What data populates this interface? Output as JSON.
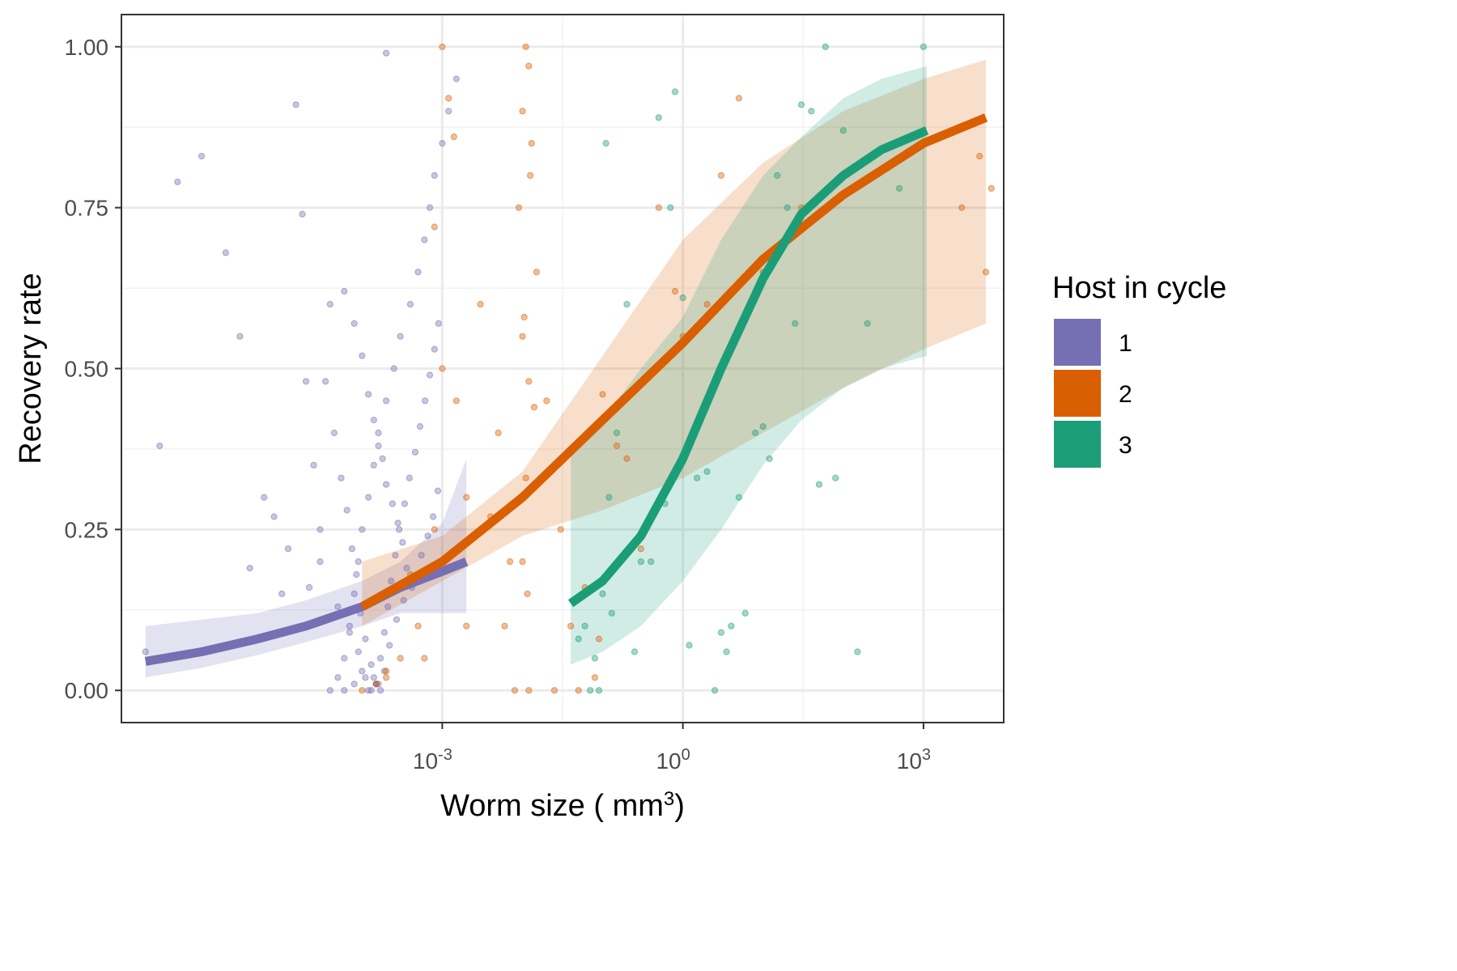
{
  "chart_data": {
    "type": "scatter",
    "title": "",
    "xlabel": "Worm size ( mm",
    "xlabel_superscript": "3",
    "xlabel_suffix": ")",
    "ylabel": "Recovery rate",
    "x_scale": "log10",
    "xlim": [
      1e-07,
      10000.0
    ],
    "ylim": [
      -0.05,
      1.05
    ],
    "x_ticks": [
      {
        "value": 0.001,
        "base": "10",
        "exp": "-3"
      },
      {
        "value": 1,
        "base": "10",
        "exp": "0"
      },
      {
        "value": 1000,
        "base": "10",
        "exp": "3"
      }
    ],
    "y_ticks": [
      {
        "value": 0.0,
        "label": "0.00"
      },
      {
        "value": 0.25,
        "label": "0.25"
      },
      {
        "value": 0.5,
        "label": "0.50"
      },
      {
        "value": 0.75,
        "label": "0.75"
      },
      {
        "value": 1.0,
        "label": "1.00"
      }
    ],
    "grid": true,
    "legend": {
      "title": "Host in cycle",
      "position": "right"
    },
    "series": [
      {
        "name": "1",
        "color": "#7570b3",
        "fit": {
          "x": [
            2e-07,
            1e-06,
            5e-06,
            2e-05,
            0.0001,
            0.0003,
            0.001,
            0.002
          ],
          "y": [
            0.045,
            0.06,
            0.08,
            0.1,
            0.13,
            0.16,
            0.185,
            0.2
          ]
        },
        "ribbon": {
          "x": [
            2e-07,
            1e-06,
            5e-06,
            2e-05,
            0.0001,
            0.0003,
            0.001,
            0.002
          ],
          "lower": [
            0.02,
            0.035,
            0.055,
            0.075,
            0.1,
            0.12,
            0.12,
            0.12
          ],
          "upper": [
            0.1,
            0.11,
            0.12,
            0.14,
            0.17,
            0.2,
            0.26,
            0.36
          ]
        },
        "points": {
          "x": [
            4e-05,
            5e-05,
            6e-05,
            7e-05,
            8e-05,
            9e-05,
            0.0001,
            0.00012,
            0.00014,
            0.00016,
            0.0002,
            0.00025,
            0.0003,
            0.0004,
            0.0005,
            0.0006,
            0.0007,
            0.0008,
            0.001,
            0.0012,
            0.0015,
            2e-05,
            2.5e-05,
            3e-05,
            1e-05,
            6e-06,
            3e-06,
            2e-06,
            1e-06,
            5e-07,
            3e-07,
            2e-07,
            1.5e-05,
            1.8e-05,
            3.5e-05,
            4.5e-05,
            5.5e-05,
            6.5e-05,
            7.5e-05,
            8.5e-05,
            9.5e-05,
            0.00011,
            0.00013,
            0.00015,
            0.00017,
            0.00019,
            0.00022,
            0.00027,
            0.00033,
            0.00044,
            0.00055,
            0.00066,
            0.00077,
            0.00088,
            4e-05,
            6e-05,
            8e-05,
            0.0001,
            0.00012,
            0.00014,
            0.00016,
            0.00018,
            0.0002,
            0.00024,
            0.00028,
            0.00032,
            0.00036,
            0.00042,
            5e-05,
            7e-05,
            9e-05,
            0.00011,
            0.00013,
            0.00015,
            0.00017,
            0.00019,
            0.00021,
            0.00023,
            0.00026,
            0.00029,
            0.00034,
            0.00039,
            0.00046,
            0.00053,
            0.00061,
            0.0007,
            0.0008,
            0.0009,
            3e-05,
            2.2e-05,
            1.2e-05,
            8e-06,
            4e-06,
            6e-05,
            8e-05,
            0.0001,
            0.00012,
            0.00014,
            0.00016,
            0.0002
          ],
          "y": [
            0.0,
            0.02,
            0.05,
            0.1,
            0.15,
            0.2,
            0.25,
            0.3,
            0.35,
            0.4,
            0.45,
            0.5,
            0.55,
            0.6,
            0.65,
            0.7,
            0.75,
            0.8,
            0.85,
            0.9,
            0.95,
            0.48,
            0.35,
            0.2,
            0.15,
            0.3,
            0.55,
            0.68,
            0.83,
            0.79,
            0.38,
            0.06,
            0.91,
            0.74,
            0.48,
            0.4,
            0.33,
            0.28,
            0.22,
            0.18,
            0.12,
            0.08,
            0.04,
            0.01,
            0.0,
            0.03,
            0.07,
            0.11,
            0.14,
            0.17,
            0.21,
            0.24,
            0.27,
            0.31,
            0.6,
            0.62,
            0.57,
            0.52,
            0.46,
            0.42,
            0.38,
            0.36,
            0.32,
            0.29,
            0.26,
            0.23,
            0.19,
            0.16,
            0.13,
            0.09,
            0.06,
            0.02,
            0.0,
            0.01,
            0.05,
            0.09,
            0.13,
            0.17,
            0.21,
            0.25,
            0.29,
            0.33,
            0.37,
            0.41,
            0.45,
            0.49,
            0.53,
            0.57,
            0.25,
            0.16,
            0.22,
            0.27,
            0.19,
            0.0,
            0.01,
            0.03,
            0.0,
            0.02,
            0.01,
            0.99
          ]
        }
      },
      {
        "name": "2",
        "color": "#d95f02",
        "fit": {
          "x": [
            0.0001,
            0.001,
            0.01,
            0.1,
            1,
            10,
            100,
            1000,
            6000
          ],
          "y": [
            0.13,
            0.2,
            0.3,
            0.42,
            0.54,
            0.67,
            0.77,
            0.85,
            0.89
          ]
        },
        "ribbon": {
          "x": [
            0.0001,
            0.001,
            0.01,
            0.1,
            1,
            10,
            100,
            1000,
            6000
          ],
          "lower": [
            0.1,
            0.17,
            0.24,
            0.28,
            0.33,
            0.4,
            0.47,
            0.53,
            0.57
          ],
          "upper": [
            0.2,
            0.24,
            0.34,
            0.52,
            0.7,
            0.82,
            0.9,
            0.95,
            0.98
          ]
        },
        "points": {
          "x": [
            0.0001,
            0.0002,
            0.0003,
            0.0005,
            0.0008,
            0.001,
            0.0015,
            0.002,
            0.003,
            0.005,
            0.007,
            0.009,
            0.01,
            0.011,
            0.012,
            0.013,
            0.015,
            0.02,
            0.03,
            0.05,
            0.08,
            0.1,
            0.15,
            0.2,
            0.3,
            0.5,
            0.8,
            1,
            2,
            3,
            5,
            10,
            30,
            3000,
            4000,
            5000,
            6000,
            7000,
            0.01,
            0.0105,
            0.011,
            0.0115,
            0.012,
            0.0125,
            0.001,
            0.0012,
            0.0014,
            0.0008,
            0.0006,
            0.0004,
            0.0002,
            0.00015,
            0.002,
            0.004,
            0.006,
            0.008,
            0.01,
            0.012,
            0.014,
            0.025,
            0.04,
            0.06,
            0.09
          ],
          "y": [
            0.0,
            0.02,
            0.05,
            0.1,
            0.25,
            0.5,
            0.45,
            0.3,
            0.6,
            0.4,
            0.2,
            0.75,
            0.9,
            1.0,
            0.97,
            0.85,
            0.65,
            0.45,
            0.25,
            0.0,
            0.02,
            0.46,
            0.38,
            0.36,
            0.22,
            0.75,
            0.62,
            0.55,
            0.6,
            0.8,
            0.92,
            0.65,
            0.75,
            0.75,
            0.88,
            0.83,
            0.65,
            0.78,
            0.55,
            0.58,
            0.33,
            0.15,
            0.0,
            0.8,
            1.0,
            0.92,
            0.86,
            0.72,
            0.05,
            0.18,
            0.03,
            0.01,
            0.1,
            0.27,
            0.1,
            0.0,
            0.2,
            0.48,
            0.44,
            0.0,
            0.1,
            0.16,
            0.08
          ]
        }
      },
      {
        "name": "3",
        "color": "#1b9e77",
        "fit": {
          "x": [
            0.04,
            0.1,
            0.3,
            1,
            3,
            10,
            30,
            100,
            300,
            1100
          ],
          "y": [
            0.135,
            0.17,
            0.24,
            0.36,
            0.5,
            0.64,
            0.74,
            0.8,
            0.84,
            0.87
          ]
        },
        "ribbon": {
          "x": [
            0.04,
            0.1,
            0.3,
            1,
            3,
            10,
            30,
            100,
            300,
            1100
          ],
          "lower": [
            0.04,
            0.06,
            0.1,
            0.17,
            0.25,
            0.35,
            0.42,
            0.47,
            0.5,
            0.52
          ],
          "upper": [
            0.38,
            0.42,
            0.5,
            0.58,
            0.7,
            0.8,
            0.86,
            0.92,
            0.95,
            0.97
          ]
        },
        "points": {
          "x": [
            0.05,
            0.06,
            0.07,
            0.08,
            0.1,
            0.12,
            0.15,
            0.2,
            0.3,
            0.5,
            0.7,
            1,
            1.5,
            2,
            3,
            4,
            5,
            7,
            10,
            15,
            20,
            30,
            50,
            100,
            200,
            500,
            1000,
            0.09,
            0.11,
            0.13,
            0.25,
            0.4,
            0.6,
            0.8,
            1.2,
            2.5,
            3.5,
            6,
            8,
            12,
            25,
            40,
            60,
            80,
            150
          ],
          "y": [
            0.08,
            0.1,
            0.0,
            0.05,
            0.15,
            0.3,
            0.4,
            0.6,
            0.2,
            0.89,
            0.75,
            0.61,
            0.33,
            0.34,
            0.09,
            0.1,
            0.3,
            0.6,
            0.41,
            0.8,
            0.75,
            0.91,
            0.32,
            0.87,
            0.57,
            0.78,
            1.0,
            0.0,
            0.85,
            0.12,
            0.06,
            0.2,
            0.29,
            0.93,
            0.07,
            0.0,
            0.06,
            0.12,
            0.4,
            0.36,
            0.57,
            0.9,
            1.0,
            0.33,
            0.06
          ]
        }
      }
    ]
  }
}
